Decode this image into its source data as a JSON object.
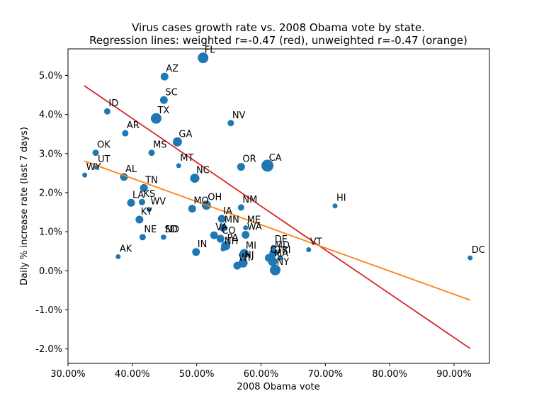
{
  "chart_data": {
    "type": "scatter",
    "title_line1": "Virus cases growth rate vs. 2008 Obama vote by state.",
    "title_line2": "Regression lines: weighted r=-0.47 (red), unweighted r=-0.47 (orange)",
    "xlabel": "2008 Obama vote",
    "ylabel": "Daily % increase rate (last 7 days)",
    "xlim": [
      0.3,
      0.955
    ],
    "ylim": [
      -0.0237,
      0.0568
    ],
    "x_ticks": [
      {
        "value": 0.3,
        "label": "30.00%"
      },
      {
        "value": 0.4,
        "label": "40.00%"
      },
      {
        "value": 0.5,
        "label": "50.00%"
      },
      {
        "value": 0.6,
        "label": "60.00%"
      },
      {
        "value": 0.7,
        "label": "70.00%"
      },
      {
        "value": 0.8,
        "label": "80.00%"
      },
      {
        "value": 0.9,
        "label": "90.00%"
      }
    ],
    "y_ticks": [
      {
        "value": -0.02,
        "label": "-2.0%"
      },
      {
        "value": -0.01,
        "label": "-1.0%"
      },
      {
        "value": 0.0,
        "label": "0.0%"
      },
      {
        "value": 0.01,
        "label": "1.0%"
      },
      {
        "value": 0.02,
        "label": "2.0%"
      },
      {
        "value": 0.03,
        "label": "3.0%"
      },
      {
        "value": 0.04,
        "label": "4.0%"
      },
      {
        "value": 0.05,
        "label": "5.0%"
      }
    ],
    "grid": false,
    "point_color": "#1f77b4",
    "regression_lines": [
      {
        "color": "#d62728",
        "x": [
          0.325,
          0.925
        ],
        "y": [
          0.0474,
          -0.0199
        ]
      },
      {
        "color": "#ff7f0e",
        "x": [
          0.325,
          0.925
        ],
        "y": [
          0.0281,
          -0.0075
        ]
      }
    ],
    "points": [
      {
        "label": "FL",
        "x": 0.51,
        "y": 0.0545,
        "w": 6
      },
      {
        "label": "AZ",
        "x": 0.45,
        "y": 0.0497,
        "w": 4
      },
      {
        "label": "SC",
        "x": 0.449,
        "y": 0.0437,
        "w": 4
      },
      {
        "label": "ID",
        "x": 0.361,
        "y": 0.0408,
        "w": 3
      },
      {
        "label": "TX",
        "x": 0.437,
        "y": 0.039,
        "w": 6
      },
      {
        "label": "NV",
        "x": 0.553,
        "y": 0.0378,
        "w": 3
      },
      {
        "label": "AR",
        "x": 0.389,
        "y": 0.0352,
        "w": 3
      },
      {
        "label": "GA",
        "x": 0.47,
        "y": 0.033,
        "w": 5
      },
      {
        "label": "OK",
        "x": 0.343,
        "y": 0.0302,
        "w": 3
      },
      {
        "label": "MS",
        "x": 0.43,
        "y": 0.0302,
        "w": 3
      },
      {
        "label": "MT",
        "x": 0.472,
        "y": 0.0269,
        "w": 2
      },
      {
        "label": "UT",
        "x": 0.344,
        "y": 0.0265,
        "w": 2
      },
      {
        "label": "OR",
        "x": 0.569,
        "y": 0.0266,
        "w": 4
      },
      {
        "label": "CA",
        "x": 0.61,
        "y": 0.0269,
        "w": 7
      },
      {
        "label": "WY",
        "x": 0.326,
        "y": 0.0245,
        "w": 2
      },
      {
        "label": "AL",
        "x": 0.387,
        "y": 0.024,
        "w": 4
      },
      {
        "label": "NC",
        "x": 0.497,
        "y": 0.0237,
        "w": 5
      },
      {
        "label": "TN",
        "x": 0.418,
        "y": 0.0212,
        "w": 4
      },
      {
        "label": "HI",
        "x": 0.715,
        "y": 0.0166,
        "w": 2
      },
      {
        "label": "LA",
        "x": 0.398,
        "y": 0.0174,
        "w": 4
      },
      {
        "label": "KS",
        "x": 0.415,
        "y": 0.0176,
        "w": 3
      },
      {
        "label": "WV",
        "x": 0.426,
        "y": 0.0157,
        "w": 2
      },
      {
        "label": "MO",
        "x": 0.493,
        "y": 0.0159,
        "w": 4
      },
      {
        "label": "OH",
        "x": 0.515,
        "y": 0.0168,
        "w": 5
      },
      {
        "label": "NM",
        "x": 0.569,
        "y": 0.0162,
        "w": 3
      },
      {
        "label": "KY",
        "x": 0.411,
        "y": 0.0131,
        "w": 4
      },
      {
        "label": "IA",
        "x": 0.539,
        "y": 0.0133,
        "w": 4
      },
      {
        "label": "MN",
        "x": 0.541,
        "y": 0.011,
        "w": 4
      },
      {
        "label": "ME",
        "x": 0.576,
        "y": 0.011,
        "w": 2
      },
      {
        "label": "WA",
        "x": 0.576,
        "y": 0.0092,
        "w": 4
      },
      {
        "label": "VA",
        "x": 0.527,
        "y": 0.0091,
        "w": 4
      },
      {
        "label": "CO",
        "x": 0.537,
        "y": 0.0082,
        "w": 4
      },
      {
        "label": "NE",
        "x": 0.416,
        "y": 0.0086,
        "w": 3
      },
      {
        "label": "SD",
        "x": 0.448,
        "y": 0.0086,
        "w": 2
      },
      {
        "label": "ND",
        "x": 0.449,
        "y": 0.0086,
        "w": 2
      },
      {
        "label": "PA",
        "x": 0.545,
        "y": 0.0064,
        "w": 5
      },
      {
        "label": "NH",
        "x": 0.541,
        "y": 0.0056,
        "w": 2
      },
      {
        "label": "IN",
        "x": 0.499,
        "y": 0.0048,
        "w": 4
      },
      {
        "label": "VT",
        "x": 0.674,
        "y": 0.0054,
        "w": 2
      },
      {
        "label": "DE",
        "x": 0.619,
        "y": 0.006,
        "w": 2
      },
      {
        "label": "MD",
        "x": 0.619,
        "y": 0.0045,
        "w": 4
      },
      {
        "label": "MI",
        "x": 0.574,
        "y": 0.0044,
        "w": 5
      },
      {
        "label": "RI",
        "x": 0.63,
        "y": 0.0033,
        "w": 2
      },
      {
        "label": "CT",
        "x": 0.612,
        "y": 0.0033,
        "w": 4
      },
      {
        "label": "MA",
        "x": 0.618,
        "y": 0.0024,
        "w": 5
      },
      {
        "label": "NJ",
        "x": 0.572,
        "y": 0.002,
        "w": 5
      },
      {
        "label": "IL",
        "x": 0.618,
        "y": 0.0024,
        "w": 5
      },
      {
        "label": "WI",
        "x": 0.563,
        "y": 0.0013,
        "w": 4
      },
      {
        "label": "NY",
        "x": 0.622,
        "y": 0.0002,
        "w": 6
      },
      {
        "label": "AK",
        "x": 0.378,
        "y": 0.0036,
        "w": 2
      },
      {
        "label": "DC",
        "x": 0.925,
        "y": 0.0033,
        "w": 2
      }
    ]
  }
}
